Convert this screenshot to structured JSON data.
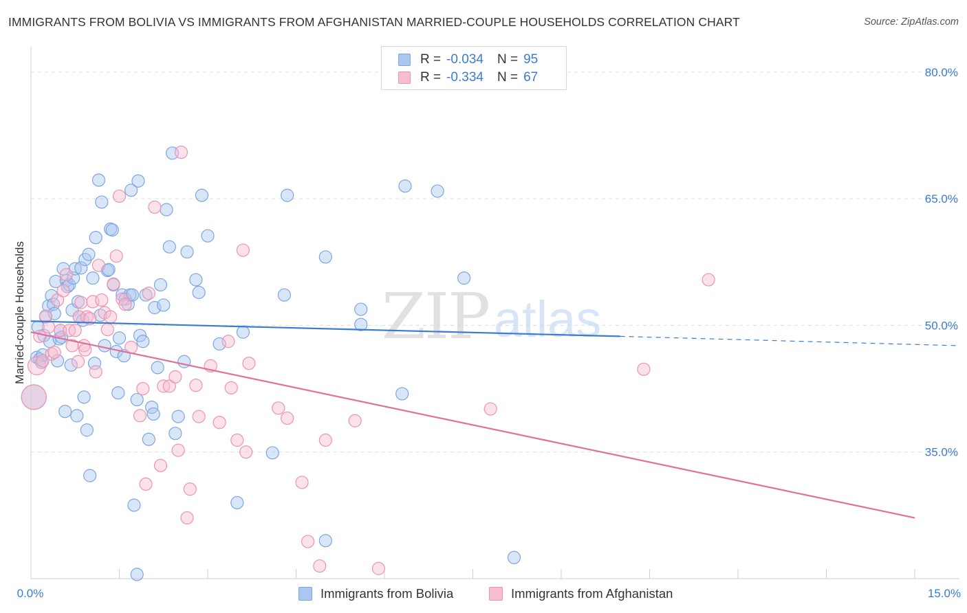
{
  "title": "IMMIGRANTS FROM BOLIVIA VS IMMIGRANTS FROM AFGHANISTAN MARRIED-COUPLE HOUSEHOLDS CORRELATION CHART",
  "source": "Source: ZipAtlas.com",
  "watermark": {
    "zip": "ZIP",
    "atlas": "atlas"
  },
  "legend": {
    "r_label": "R =",
    "n_label": "N =",
    "rows": [
      {
        "r": "-0.034",
        "n": "95"
      },
      {
        "r": "-0.334",
        "n": "67"
      }
    ]
  },
  "colors": {
    "bolivia_fill": "#aac8ef",
    "bolivia_stroke": "#7ba6e0",
    "bolivia_line": "#3a7bd5",
    "afghanistan_fill": "#f6bdd0",
    "afghanistan_stroke": "#ec93b1",
    "afghanistan_line": "#e0709b",
    "tick_label": "#3a7bd5"
  },
  "chart_data": {
    "type": "scatter",
    "title": "IMMIGRANTS FROM BOLIVIA VS IMMIGRANTS FROM AFGHANISTAN MARRIED-COUPLE HOUSEHOLDS CORRELATION CHART",
    "xlabel": "",
    "ylabel": "Married-couple Households",
    "xlim": [
      0,
      15
    ],
    "ylim": [
      20,
      83
    ],
    "x_tick_labels": [
      "0.0%",
      "15.0%"
    ],
    "y_ticks": [
      35,
      50,
      65,
      80
    ],
    "y_tick_labels": [
      "35.0%",
      "50.0%",
      "65.0%",
      "80.0%"
    ],
    "grid": true,
    "legend_position": "top-center",
    "series": [
      {
        "name": "Immigrants from Bolivia",
        "r": -0.034,
        "n": 95,
        "trend": {
          "x": [
            0,
            10.0
          ],
          "y": [
            50.5,
            48.7
          ],
          "dashed_to": [
            15,
            47.6
          ]
        },
        "points": [
          [
            0.05,
            41.5,
            "L"
          ],
          [
            0.1,
            46.2
          ],
          [
            0.12,
            49.8
          ],
          [
            0.15,
            46.0
          ],
          [
            0.18,
            45.6
          ],
          [
            0.2,
            46.5
          ],
          [
            0.22,
            48.8
          ],
          [
            0.25,
            51.0
          ],
          [
            0.3,
            52.3
          ],
          [
            0.32,
            48.1
          ],
          [
            0.35,
            53.5
          ],
          [
            0.38,
            52.5
          ],
          [
            0.4,
            51.4
          ],
          [
            0.42,
            55.2
          ],
          [
            0.45,
            45.8
          ],
          [
            0.48,
            48.4
          ],
          [
            0.5,
            49.4
          ],
          [
            0.52,
            48.6
          ],
          [
            0.55,
            56.7
          ],
          [
            0.58,
            39.8
          ],
          [
            0.6,
            55.3
          ],
          [
            0.62,
            54.6
          ],
          [
            0.65,
            54.8
          ],
          [
            0.68,
            45.3
          ],
          [
            0.7,
            51.8
          ],
          [
            0.72,
            55.6
          ],
          [
            0.75,
            56.7
          ],
          [
            0.78,
            39.3
          ],
          [
            0.8,
            52.8
          ],
          [
            0.82,
            51.0
          ],
          [
            0.85,
            56.8
          ],
          [
            0.88,
            50.6
          ],
          [
            0.9,
            41.5
          ],
          [
            0.92,
            57.8
          ],
          [
            0.95,
            37.6
          ],
          [
            0.98,
            58.4
          ],
          [
            1.0,
            32.2
          ],
          [
            1.05,
            55.6
          ],
          [
            1.08,
            45.5
          ],
          [
            1.1,
            60.4
          ],
          [
            1.15,
            67.2
          ],
          [
            1.18,
            51.2
          ],
          [
            1.2,
            64.6
          ],
          [
            1.25,
            47.6
          ],
          [
            1.3,
            56.5
          ],
          [
            1.32,
            56.6
          ],
          [
            1.35,
            61.4
          ],
          [
            1.38,
            61.3
          ],
          [
            1.4,
            54.8
          ],
          [
            1.45,
            46.9
          ],
          [
            1.48,
            42.0
          ],
          [
            1.5,
            48.5
          ],
          [
            1.55,
            53.6
          ],
          [
            1.58,
            46.4
          ],
          [
            1.6,
            53.1
          ],
          [
            1.65,
            52.5
          ],
          [
            1.68,
            53.6
          ],
          [
            1.7,
            66.0
          ],
          [
            1.72,
            53.6
          ],
          [
            1.75,
            28.7
          ],
          [
            1.8,
            41.2
          ],
          [
            1.82,
            67.1
          ],
          [
            1.85,
            48.8
          ],
          [
            1.9,
            48.1
          ],
          [
            1.95,
            53.6
          ],
          [
            2.0,
            36.5
          ],
          [
            2.05,
            40.3
          ],
          [
            2.08,
            39.5
          ],
          [
            2.1,
            52.1
          ],
          [
            2.15,
            45.0
          ],
          [
            2.2,
            54.8
          ],
          [
            2.25,
            52.4
          ],
          [
            2.3,
            63.7
          ],
          [
            2.35,
            59.3
          ],
          [
            2.4,
            70.4
          ],
          [
            2.45,
            37.2
          ],
          [
            2.5,
            39.2
          ],
          [
            2.6,
            45.7
          ],
          [
            2.65,
            58.7
          ],
          [
            2.8,
            55.4
          ],
          [
            2.85,
            53.9
          ],
          [
            2.9,
            65.4
          ],
          [
            3.0,
            60.6
          ],
          [
            3.2,
            47.8
          ],
          [
            3.5,
            29.0
          ],
          [
            3.6,
            49.2
          ],
          [
            4.1,
            34.9
          ],
          [
            4.35,
            65.4
          ],
          [
            4.3,
            53.6
          ],
          [
            5.0,
            58.1
          ],
          [
            5.0,
            24.5
          ],
          [
            5.6,
            51.9
          ],
          [
            5.6,
            50.1
          ],
          [
            6.3,
            41.9
          ],
          [
            6.35,
            66.5
          ],
          [
            6.9,
            65.9
          ],
          [
            7.35,
            55.6
          ],
          [
            8.2,
            22.5
          ],
          [
            1.8,
            20.5
          ]
        ]
      },
      {
        "name": "Immigrants from Afghanistan",
        "r": -0.334,
        "n": 67,
        "trend": {
          "x": [
            0,
            15
          ],
          "y": [
            49.2,
            27.2
          ]
        },
        "points": [
          [
            0.05,
            41.5,
            "L"
          ],
          [
            0.1,
            45.2,
            "M"
          ],
          [
            0.15,
            48.7
          ],
          [
            0.2,
            45.8
          ],
          [
            0.25,
            51.1
          ],
          [
            0.3,
            49.8
          ],
          [
            0.35,
            46.6
          ],
          [
            0.4,
            46.8
          ],
          [
            0.45,
            53.0
          ],
          [
            0.5,
            49.4
          ],
          [
            0.55,
            54.1
          ],
          [
            0.6,
            56.0
          ],
          [
            0.65,
            49.4
          ],
          [
            0.7,
            47.6
          ],
          [
            0.75,
            49.4
          ],
          [
            0.8,
            45.7
          ],
          [
            0.82,
            51.0
          ],
          [
            0.85,
            52.7
          ],
          [
            0.9,
            47.6
          ],
          [
            0.92,
            47.1
          ],
          [
            0.95,
            51.0
          ],
          [
            1.0,
            50.8
          ],
          [
            1.05,
            52.8
          ],
          [
            1.1,
            44.5
          ],
          [
            1.15,
            57.1
          ],
          [
            1.2,
            53.0
          ],
          [
            1.25,
            51.5
          ],
          [
            1.3,
            49.5
          ],
          [
            1.35,
            51.0
          ],
          [
            1.4,
            54.9
          ],
          [
            1.45,
            58.2
          ],
          [
            1.5,
            65.3
          ],
          [
            1.55,
            53.1
          ],
          [
            1.6,
            52.5
          ],
          [
            1.7,
            47.4
          ],
          [
            1.85,
            39.3
          ],
          [
            1.9,
            42.5
          ],
          [
            1.95,
            31.2
          ],
          [
            2.0,
            53.8
          ],
          [
            2.1,
            64.0
          ],
          [
            2.2,
            33.4
          ],
          [
            2.25,
            42.8
          ],
          [
            2.35,
            42.8
          ],
          [
            2.45,
            43.9
          ],
          [
            2.5,
            35.2
          ],
          [
            2.55,
            70.5
          ],
          [
            2.65,
            27.2
          ],
          [
            2.7,
            30.6
          ],
          [
            2.8,
            42.9
          ],
          [
            2.85,
            39.2
          ],
          [
            3.05,
            45.2
          ],
          [
            3.2,
            38.5
          ],
          [
            3.35,
            48.1
          ],
          [
            3.4,
            42.6
          ],
          [
            3.5,
            36.4
          ],
          [
            3.6,
            58.9
          ],
          [
            3.65,
            35.0
          ],
          [
            3.7,
            45.5
          ],
          [
            4.2,
            40.2
          ],
          [
            4.35,
            39.0
          ],
          [
            4.6,
            31.4
          ],
          [
            4.7,
            24.4
          ],
          [
            4.9,
            21.5
          ],
          [
            5.0,
            36.4
          ],
          [
            5.5,
            38.7
          ],
          [
            5.9,
            21.2
          ],
          [
            7.8,
            40.1
          ],
          [
            10.4,
            44.8
          ],
          [
            11.5,
            55.4
          ]
        ]
      }
    ]
  },
  "bottom_legend": [
    "Immigrants from Bolivia",
    "Immigrants from Afghanistan"
  ]
}
